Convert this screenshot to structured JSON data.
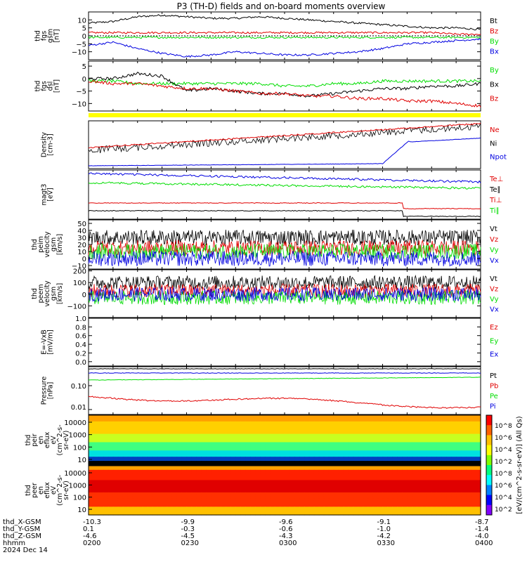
{
  "title": "P3 (TH-D) fields and on-board moments overview",
  "colors": {
    "black": "#000000",
    "red": "#e00000",
    "green": "#00dd00",
    "blue": "#0000e0",
    "yellow": "#ffff00"
  },
  "chart_data": [
    {
      "type": "line",
      "ylabel": [
        "thd",
        "fgs",
        "gsm",
        "[nT]"
      ],
      "ylim": [
        -15,
        15
      ],
      "yticks": [
        "10",
        "5",
        "0",
        "−5",
        "−10"
      ],
      "ytick_vals": [
        10,
        5,
        0,
        -5,
        -10
      ],
      "series": [
        {
          "name": "Bt",
          "color": "black",
          "values": [
            8,
            9,
            12,
            13,
            12,
            11,
            11,
            12,
            11,
            10,
            9,
            8,
            7,
            6,
            5,
            5,
            4
          ]
        },
        {
          "name": "Bz",
          "color": "red",
          "values": [
            2,
            2,
            2,
            2,
            2,
            2,
            2,
            2,
            2,
            2,
            2,
            2,
            2,
            2,
            2,
            1,
            1
          ]
        },
        {
          "name": "By",
          "color": "green",
          "values": [
            -1,
            -1,
            -1,
            -1,
            -1,
            -1,
            -1,
            -1,
            -1,
            -1,
            -1,
            -1,
            -1,
            -1,
            -1,
            -1,
            -1
          ]
        },
        {
          "name": "Bx",
          "color": "blue",
          "values": [
            -6,
            -4,
            -8,
            -11,
            -13,
            -12,
            -10,
            -11,
            -12,
            -12,
            -11,
            -10,
            -8,
            -5,
            -4,
            -3,
            -2
          ]
        }
      ]
    },
    {
      "type": "line",
      "ylabel": [
        "thd",
        "fgs",
        "dsl",
        "[nT]"
      ],
      "ylim": [
        -13,
        7
      ],
      "yticks": [
        "5",
        "0",
        "−5",
        "−10"
      ],
      "ytick_vals": [
        5,
        0,
        -5,
        -10
      ],
      "series": [
        {
          "name": "By",
          "color": "green",
          "values": [
            -1,
            -1,
            -2,
            -2,
            -2,
            -2,
            -2,
            -2,
            -3,
            -3,
            -2,
            -2,
            -1,
            -1,
            -1,
            -1,
            -1
          ]
        },
        {
          "name": "Bx",
          "color": "black",
          "values": [
            0,
            0,
            2,
            1,
            -5,
            -4,
            -5,
            -6,
            -6,
            -7,
            -6,
            -5,
            -4,
            -4,
            -3,
            -3,
            -2
          ]
        },
        {
          "name": "Bz",
          "color": "red",
          "values": [
            -1,
            -2,
            -2,
            -3,
            -4,
            -4,
            -5,
            -6,
            -6,
            -7,
            -7,
            -8,
            -8,
            -9,
            -9,
            -10,
            -11
          ]
        }
      ]
    },
    {
      "type": "line",
      "ylabel": [
        "Density",
        "[cm-3]"
      ],
      "yscale": "log",
      "series": [
        {
          "name": "Ne",
          "color": "red"
        },
        {
          "name": "Ni",
          "color": "black"
        },
        {
          "name": "Npot",
          "color": "blue"
        }
      ]
    },
    {
      "type": "line",
      "ylabel": [
        "magt3",
        "[eV]"
      ],
      "yscale": "log",
      "series": [
        {
          "name": "Te⊥",
          "color": "red"
        },
        {
          "name": "Te∥",
          "color": "black"
        },
        {
          "name": "Ti⊥",
          "color": "red"
        },
        {
          "name": "Ti∥",
          "color": "green"
        }
      ]
    },
    {
      "type": "line",
      "ylabel": [
        "thd",
        "peim",
        "velocity",
        "gsm",
        "[km/s]"
      ],
      "ylim": [
        -15,
        55
      ],
      "yticks": [
        "50",
        "40",
        "30",
        "20",
        "10",
        "0",
        "−10"
      ],
      "ytick_vals": [
        50,
        40,
        30,
        20,
        10,
        0,
        -10
      ],
      "series": [
        {
          "name": "Vt",
          "color": "black",
          "values": [
            30
          ]
        },
        {
          "name": "Vz",
          "color": "red",
          "values": [
            15
          ]
        },
        {
          "name": "Vy",
          "color": "green",
          "values": [
            10
          ]
        },
        {
          "name": "Vx",
          "color": "blue",
          "values": [
            0
          ]
        }
      ]
    },
    {
      "type": "line",
      "ylabel": [
        "thd",
        "peem",
        "velocity",
        "gsm",
        "[km/s]"
      ],
      "ylim": [
        -200,
        210
      ],
      "yticks": [
        "200",
        "100",
        "0",
        "−100"
      ],
      "ytick_vals": [
        200,
        100,
        0,
        -100
      ],
      "series": [
        {
          "name": "Vt",
          "color": "black",
          "values": [
            100
          ]
        },
        {
          "name": "Vz",
          "color": "red",
          "values": [
            30
          ]
        },
        {
          "name": "Vy",
          "color": "green",
          "values": [
            -30
          ]
        },
        {
          "name": "Vx",
          "color": "blue",
          "values": [
            0
          ]
        }
      ]
    },
    {
      "type": "line",
      "ylabel": [
        "E=-VxB",
        "[mV/m]"
      ],
      "ylim": [
        -0.1,
        1.0
      ],
      "yticks": [
        "1.0",
        "0.8",
        "0.6",
        "0.4",
        "0.2",
        "0.0"
      ],
      "ytick_vals": [
        1.0,
        0.8,
        0.6,
        0.4,
        0.2,
        0.0
      ],
      "series": [
        {
          "name": "Ez",
          "color": "red"
        },
        {
          "name": "Ey",
          "color": "green"
        },
        {
          "name": "Ex",
          "color": "blue"
        }
      ]
    },
    {
      "type": "line",
      "ylabel": [
        "Pressure",
        "[nPa]"
      ],
      "yscale": "log",
      "yticks": [
        "0.10",
        "0.01"
      ],
      "series": [
        {
          "name": "Pt",
          "color": "black"
        },
        {
          "name": "Pb",
          "color": "red"
        },
        {
          "name": "Pe",
          "color": "green"
        },
        {
          "name": "Pi",
          "color": "blue"
        }
      ]
    },
    {
      "type": "heatmap",
      "ylabel": [
        "thd",
        "peir",
        "en",
        "eflux",
        "eV",
        "(cm^2-s-",
        "sr-eV)"
      ],
      "yscale": "log",
      "yticks": [
        "10000",
        "1000",
        "100",
        "10"
      ]
    },
    {
      "type": "heatmap",
      "ylabel": [
        "thd",
        "peer",
        "en",
        "eflux",
        "eV",
        "(cm^2-s-",
        "sr-eV)"
      ],
      "yscale": "log",
      "yticks": [
        "10000",
        "1000",
        "100",
        "10"
      ]
    }
  ],
  "legend_labels": [
    [
      "Bt",
      "Bz",
      "By",
      "Bx"
    ],
    [
      "By",
      "Bx",
      "Bz"
    ],
    [
      "Ne",
      "Ni",
      "Npot"
    ],
    [
      "Te⊥",
      "Te∥",
      "Ti⊥",
      "Ti∥"
    ],
    [
      "Vt",
      "Vz",
      "Vy",
      "Vx"
    ],
    [
      "Vt",
      "Vz",
      "Vy",
      "Vx"
    ],
    [
      "Ez",
      "Ey",
      "Ex"
    ],
    [
      "Pt",
      "Pb",
      "Pe",
      "Pi"
    ]
  ],
  "colorbar": {
    "tick_labels": [
      "10^8",
      "10^6",
      "10^4",
      "10^2",
      "10^8",
      "10^6",
      "10^4",
      "10^2"
    ],
    "label": "[eV/(cm^2-s-sr-eV)] (All Qs)"
  },
  "x_axis": {
    "row_labels": [
      "thd_X-GSM",
      "thd_Y-GSM",
      "thd_Z-GSM",
      "hhmm",
      "2024 Dec 14"
    ],
    "columns": [
      {
        "x": "-10.3",
        "y": "0.1",
        "z": "-4.6",
        "t": "0200"
      },
      {
        "x": "-9.9",
        "y": "-0.3",
        "z": "-4.5",
        "t": "0230"
      },
      {
        "x": "-9.6",
        "y": "-0.6",
        "z": "-4.3",
        "t": "0300"
      },
      {
        "x": "-9.1",
        "y": "-1.0",
        "z": "-4.2",
        "t": "0330"
      },
      {
        "x": "-8.7",
        "y": "-1.4",
        "z": "-4.0",
        "t": "0400"
      }
    ]
  }
}
